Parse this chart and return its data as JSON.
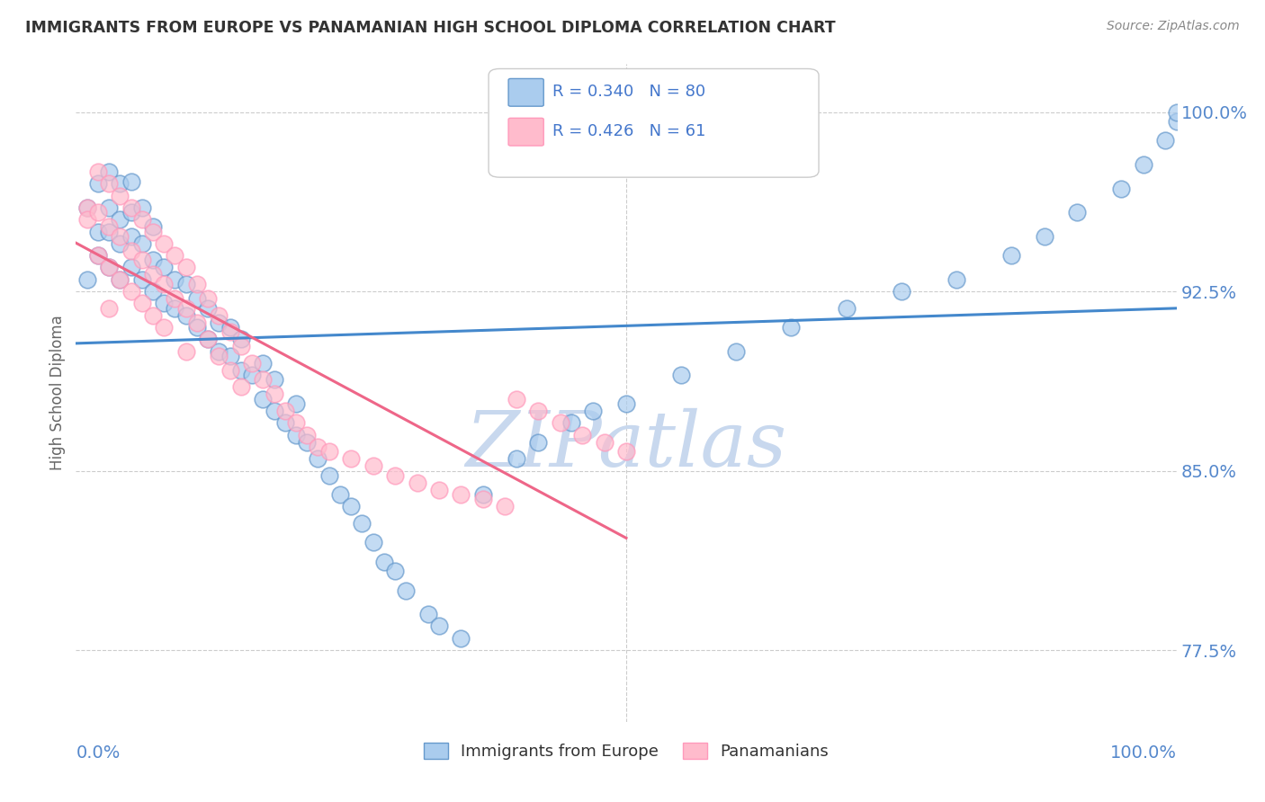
{
  "title": "IMMIGRANTS FROM EUROPE VS PANAMANIAN HIGH SCHOOL DIPLOMA CORRELATION CHART",
  "source": "Source: ZipAtlas.com",
  "ylabel": "High School Diploma",
  "xlim": [
    0.0,
    1.0
  ],
  "ylim": [
    0.745,
    1.02
  ],
  "yticks": [
    0.775,
    0.85,
    0.925,
    1.0
  ],
  "ytick_labels": [
    "77.5%",
    "85.0%",
    "92.5%",
    "100.0%"
  ],
  "blue_R": 0.34,
  "blue_N": 80,
  "pink_R": 0.426,
  "pink_N": 61,
  "blue_color": "#6699CC",
  "pink_color": "#FF99BB",
  "blue_edge_color": "#4477AA",
  "pink_edge_color": "#DD6688",
  "blue_label": "Immigrants from Europe",
  "pink_label": "Panamanians",
  "background_color": "#ffffff",
  "grid_color": "#CCCCCC",
  "title_color": "#333333",
  "tick_color": "#5588CC",
  "legend_color": "#4477CC",
  "watermark_color": "#C8D8EE",
  "blue_scatter_x": [
    0.01,
    0.01,
    0.02,
    0.02,
    0.02,
    0.03,
    0.03,
    0.03,
    0.03,
    0.04,
    0.04,
    0.04,
    0.04,
    0.05,
    0.05,
    0.05,
    0.05,
    0.06,
    0.06,
    0.06,
    0.07,
    0.07,
    0.07,
    0.08,
    0.08,
    0.09,
    0.09,
    0.1,
    0.1,
    0.11,
    0.11,
    0.12,
    0.12,
    0.13,
    0.13,
    0.14,
    0.14,
    0.15,
    0.15,
    0.16,
    0.17,
    0.17,
    0.18,
    0.18,
    0.19,
    0.2,
    0.2,
    0.21,
    0.22,
    0.23,
    0.24,
    0.25,
    0.26,
    0.27,
    0.28,
    0.29,
    0.3,
    0.32,
    0.33,
    0.35,
    0.37,
    0.4,
    0.42,
    0.45,
    0.47,
    0.5,
    0.55,
    0.6,
    0.65,
    0.7,
    0.75,
    0.8,
    0.85,
    0.88,
    0.91,
    0.95,
    0.97,
    0.99,
    1.0,
    1.0
  ],
  "blue_scatter_y": [
    0.93,
    0.96,
    0.94,
    0.95,
    0.97,
    0.935,
    0.95,
    0.96,
    0.975,
    0.93,
    0.945,
    0.955,
    0.97,
    0.935,
    0.948,
    0.958,
    0.971,
    0.93,
    0.945,
    0.96,
    0.925,
    0.938,
    0.952,
    0.92,
    0.935,
    0.918,
    0.93,
    0.915,
    0.928,
    0.91,
    0.922,
    0.905,
    0.918,
    0.9,
    0.912,
    0.898,
    0.91,
    0.892,
    0.905,
    0.89,
    0.88,
    0.895,
    0.875,
    0.888,
    0.87,
    0.865,
    0.878,
    0.862,
    0.855,
    0.848,
    0.84,
    0.835,
    0.828,
    0.82,
    0.812,
    0.808,
    0.8,
    0.79,
    0.785,
    0.78,
    0.84,
    0.855,
    0.862,
    0.87,
    0.875,
    0.878,
    0.89,
    0.9,
    0.91,
    0.918,
    0.925,
    0.93,
    0.94,
    0.948,
    0.958,
    0.968,
    0.978,
    0.988,
    0.996,
    1.0
  ],
  "pink_scatter_x": [
    0.01,
    0.01,
    0.02,
    0.02,
    0.02,
    0.03,
    0.03,
    0.03,
    0.03,
    0.04,
    0.04,
    0.04,
    0.05,
    0.05,
    0.05,
    0.06,
    0.06,
    0.06,
    0.07,
    0.07,
    0.07,
    0.08,
    0.08,
    0.08,
    0.09,
    0.09,
    0.1,
    0.1,
    0.1,
    0.11,
    0.11,
    0.12,
    0.12,
    0.13,
    0.13,
    0.14,
    0.14,
    0.15,
    0.15,
    0.16,
    0.17,
    0.18,
    0.19,
    0.2,
    0.21,
    0.22,
    0.23,
    0.25,
    0.27,
    0.29,
    0.31,
    0.33,
    0.35,
    0.37,
    0.39,
    0.4,
    0.42,
    0.44,
    0.46,
    0.48,
    0.5
  ],
  "pink_scatter_y": [
    0.96,
    0.955,
    0.975,
    0.958,
    0.94,
    0.97,
    0.952,
    0.935,
    0.918,
    0.965,
    0.948,
    0.93,
    0.96,
    0.942,
    0.925,
    0.955,
    0.938,
    0.92,
    0.95,
    0.932,
    0.915,
    0.945,
    0.928,
    0.91,
    0.94,
    0.922,
    0.935,
    0.918,
    0.9,
    0.928,
    0.912,
    0.922,
    0.905,
    0.915,
    0.898,
    0.908,
    0.892,
    0.902,
    0.885,
    0.895,
    0.888,
    0.882,
    0.875,
    0.87,
    0.865,
    0.86,
    0.858,
    0.855,
    0.852,
    0.848,
    0.845,
    0.842,
    0.84,
    0.838,
    0.835,
    0.88,
    0.875,
    0.87,
    0.865,
    0.862,
    0.858
  ]
}
